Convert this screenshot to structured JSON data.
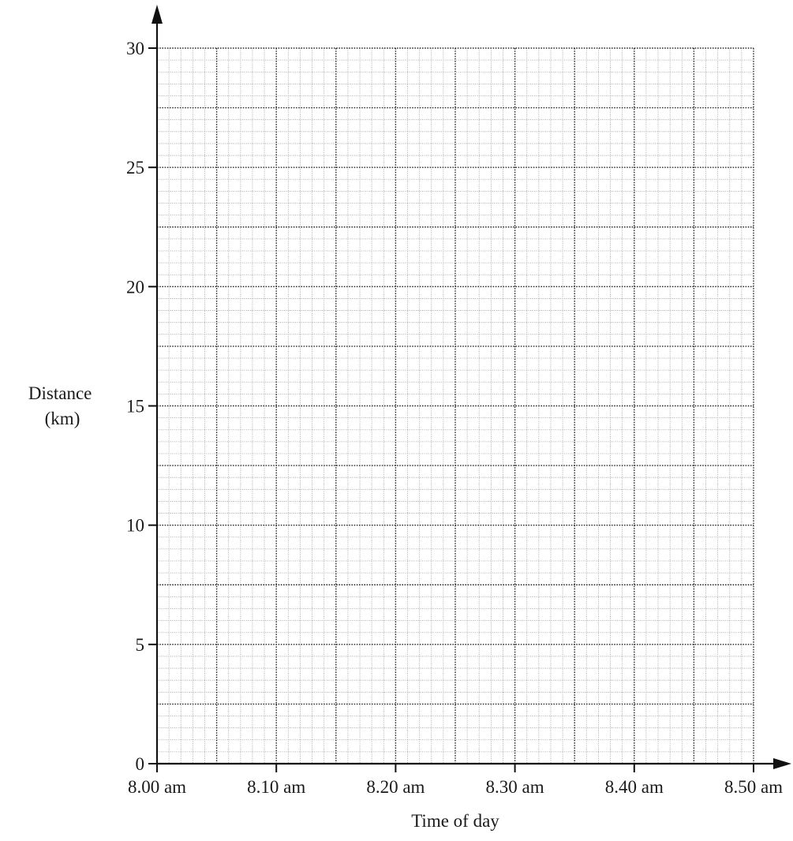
{
  "chart_data": {
    "type": "line",
    "title": "",
    "xlabel": "Time of day",
    "ylabel_lines": [
      "Distance",
      "(km)"
    ],
    "x_unit": "minutes",
    "xlim": [
      0,
      50
    ],
    "ylim": [
      0,
      30
    ],
    "x_ticks": [
      {
        "value": 0,
        "label": "8.00 am"
      },
      {
        "value": 10,
        "label": "8.10 am"
      },
      {
        "value": 20,
        "label": "8.20 am"
      },
      {
        "value": 30,
        "label": "8.30 am"
      },
      {
        "value": 40,
        "label": "8.40 am"
      },
      {
        "value": 50,
        "label": "8.50 am"
      }
    ],
    "y_ticks": [
      {
        "value": 0,
        "label": "0"
      },
      {
        "value": 5,
        "label": "5"
      },
      {
        "value": 10,
        "label": "10"
      },
      {
        "value": 15,
        "label": "15"
      },
      {
        "value": 20,
        "label": "20"
      },
      {
        "value": 25,
        "label": "25"
      },
      {
        "value": 30,
        "label": "30"
      }
    ],
    "grid": {
      "major_x": 5,
      "major_y": 2.5,
      "minor_x": 1,
      "minor_y": 0.5
    },
    "series": []
  }
}
